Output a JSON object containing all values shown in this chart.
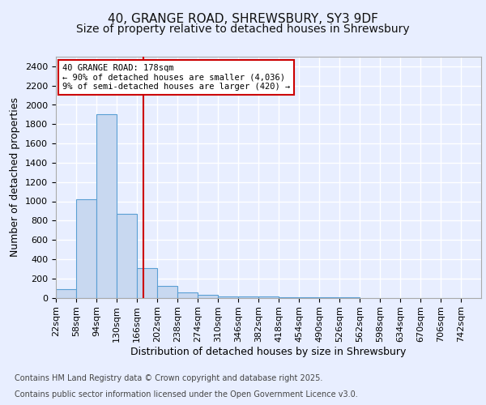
{
  "title_line1": "40, GRANGE ROAD, SHREWSBURY, SY3 9DF",
  "title_line2": "Size of property relative to detached houses in Shrewsbury",
  "xlabel": "Distribution of detached houses by size in Shrewsbury",
  "ylabel": "Number of detached properties",
  "bin_labels": [
    "22sqm",
    "58sqm",
    "94sqm",
    "130sqm",
    "166sqm",
    "202sqm",
    "238sqm",
    "274sqm",
    "310sqm",
    "346sqm",
    "382sqm",
    "418sqm",
    "454sqm",
    "490sqm",
    "526sqm",
    "562sqm",
    "598sqm",
    "634sqm",
    "670sqm",
    "706sqm",
    "742sqm"
  ],
  "bin_edges": [
    22,
    58,
    94,
    130,
    166,
    202,
    238,
    274,
    310,
    346,
    382,
    418,
    454,
    490,
    526,
    562,
    598,
    634,
    670,
    706,
    742,
    778
  ],
  "bar_values": [
    90,
    1020,
    1900,
    870,
    310,
    120,
    55,
    30,
    15,
    10,
    10,
    5,
    2,
    1,
    1,
    0,
    0,
    0,
    0,
    0,
    0
  ],
  "bar_color": "#c8d8f0",
  "bar_edge_color": "#5a9fd4",
  "property_size": 178,
  "vline_color": "#cc0000",
  "annotation_line1": "40 GRANGE ROAD: 178sqm",
  "annotation_line2": "← 90% of detached houses are smaller (4,036)",
  "annotation_line3": "9% of semi-detached houses are larger (420) →",
  "annotation_box_color": "#ffffff",
  "annotation_box_edge": "#cc0000",
  "ylim": [
    0,
    2500
  ],
  "yticks": [
    0,
    200,
    400,
    600,
    800,
    1000,
    1200,
    1400,
    1600,
    1800,
    2000,
    2200,
    2400
  ],
  "footer_line1": "Contains HM Land Registry data © Crown copyright and database right 2025.",
  "footer_line2": "Contains public sector information licensed under the Open Government Licence v3.0.",
  "bg_color": "#e8eeff",
  "plot_bg_color": "#e8eeff",
  "grid_color": "#ffffff",
  "title_fontsize": 11,
  "subtitle_fontsize": 10,
  "axis_label_fontsize": 9,
  "tick_fontsize": 8,
  "annotation_fontsize": 7.5,
  "footer_fontsize": 7
}
